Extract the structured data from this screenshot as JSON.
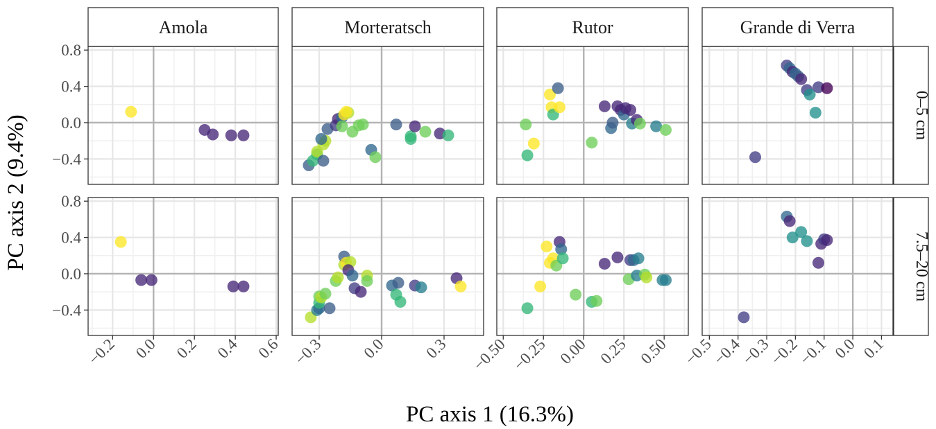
{
  "chart_data": {
    "type": "scatter",
    "xlabel": "PC axis 1 (16.3%)",
    "ylabel": "PC axis 2 (9.4%)",
    "columns": [
      "Amola",
      "Morteratsch",
      "Rutor",
      "Grande di Verra"
    ],
    "rows": [
      "0–5 cm",
      "7.5–20 cm"
    ],
    "y_ticks": [
      -0.4,
      0.0,
      0.4,
      0.8
    ],
    "y_tick_labels": [
      "−0.4",
      "0.0",
      "0.4",
      "0.8"
    ],
    "ylim": [
      -0.68,
      0.84
    ],
    "grid": true,
    "legend": "none",
    "palette": {
      "p": "#440154",
      "ip": "#3b1f6f",
      "dp": "#482878",
      "pu": "#433e85",
      "sb": "#3e5f8a",
      "b": "#31688e",
      "tb": "#277f8e",
      "tl": "#21918c",
      "g": "#35b779",
      "lg": "#6ece58",
      "yg": "#b5de2b",
      "y": "#fde725"
    },
    "panels": [
      {
        "column": "Amola",
        "xlim": [
          -0.32,
          0.61
        ],
        "x_ticks": [
          -0.2,
          0.0,
          0.2,
          0.4,
          0.6
        ],
        "x_tick_labels": [
          "−0.2",
          "0.0",
          "0.2",
          "0.4",
          "0.6"
        ],
        "rows": [
          [
            [
              -0.11,
              0.12,
              "y"
            ],
            [
              0.25,
              -0.08,
              "dp"
            ],
            [
              0.29,
              -0.13,
              "dp"
            ],
            [
              0.38,
              -0.14,
              "dp"
            ],
            [
              0.44,
              -0.14,
              "dp"
            ]
          ],
          [
            [
              -0.16,
              0.35,
              "y"
            ],
            [
              -0.06,
              -0.07,
              "dp"
            ],
            [
              -0.01,
              -0.07,
              "dp"
            ],
            [
              0.39,
              -0.14,
              "dp"
            ],
            [
              0.44,
              -0.14,
              "dp"
            ]
          ]
        ]
      },
      {
        "column": "Morteratsch",
        "xlim": [
          -0.43,
          0.49
        ],
        "x_ticks": [
          -0.3,
          0.0,
          0.3
        ],
        "x_tick_labels": [
          "−0.3",
          "0.0",
          "0.3"
        ],
        "rows": [
          [
            [
              -0.35,
              -0.47,
              "sb"
            ],
            [
              -0.33,
              -0.42,
              "g"
            ],
            [
              -0.31,
              -0.35,
              "g"
            ],
            [
              -0.31,
              -0.32,
              "yg"
            ],
            [
              -0.28,
              -0.42,
              "sb"
            ],
            [
              -0.28,
              -0.24,
              "yg"
            ],
            [
              -0.27,
              -0.2,
              "yg"
            ],
            [
              -0.29,
              -0.18,
              "b"
            ],
            [
              -0.26,
              -0.07,
              "sb"
            ],
            [
              -0.22,
              -0.03,
              "pu"
            ],
            [
              -0.21,
              0.04,
              "dp"
            ],
            [
              -0.19,
              0.06,
              "b"
            ],
            [
              -0.18,
              0.09,
              "y"
            ],
            [
              -0.16,
              0.11,
              "yg"
            ],
            [
              -0.17,
              0.12,
              "y"
            ],
            [
              -0.19,
              -0.04,
              "lg"
            ],
            [
              -0.14,
              -0.1,
              "lg"
            ],
            [
              -0.11,
              -0.03,
              "lg"
            ],
            [
              -0.09,
              -0.02,
              "lg"
            ],
            [
              -0.05,
              -0.3,
              "b"
            ],
            [
              -0.03,
              -0.38,
              "lg"
            ],
            [
              0.07,
              -0.02,
              "sb"
            ],
            [
              0.14,
              -0.15,
              "g"
            ],
            [
              0.14,
              -0.18,
              "g"
            ],
            [
              0.16,
              -0.04,
              "dp"
            ],
            [
              0.21,
              -0.1,
              "lg"
            ],
            [
              0.28,
              -0.12,
              "dp"
            ],
            [
              0.32,
              -0.14,
              "g"
            ]
          ],
          [
            [
              -0.34,
              -0.48,
              "yg"
            ],
            [
              -0.31,
              -0.4,
              "tb"
            ],
            [
              -0.3,
              -0.38,
              "b"
            ],
            [
              -0.3,
              -0.32,
              "g"
            ],
            [
              -0.3,
              -0.25,
              "lg"
            ],
            [
              -0.29,
              -0.26,
              "yg"
            ],
            [
              -0.27,
              -0.22,
              "lg"
            ],
            [
              -0.25,
              -0.38,
              "sb"
            ],
            [
              -0.22,
              -0.08,
              "lg"
            ],
            [
              -0.21,
              -0.04,
              "yg"
            ],
            [
              -0.18,
              0.1,
              "yg"
            ],
            [
              -0.18,
              0.19,
              "sb"
            ],
            [
              -0.17,
              0.12,
              "y"
            ],
            [
              -0.15,
              0.13,
              "yg"
            ],
            [
              -0.16,
              0.04,
              "dp"
            ],
            [
              -0.14,
              -0.02,
              "b"
            ],
            [
              -0.13,
              -0.16,
              "pu"
            ],
            [
              -0.1,
              -0.2,
              "dp"
            ],
            [
              -0.07,
              -0.02,
              "yg"
            ],
            [
              -0.07,
              -0.08,
              "lg"
            ],
            [
              0.05,
              -0.13,
              "b"
            ],
            [
              0.07,
              -0.23,
              "g"
            ],
            [
              0.08,
              -0.1,
              "sb"
            ],
            [
              0.09,
              -0.31,
              "g"
            ],
            [
              0.16,
              -0.13,
              "pu"
            ],
            [
              0.19,
              -0.15,
              "tb"
            ],
            [
              0.36,
              -0.05,
              "dp"
            ],
            [
              0.38,
              -0.14,
              "y"
            ]
          ]
        ]
      },
      {
        "column": "Rutor",
        "xlim": [
          -0.54,
          0.65
        ],
        "x_ticks": [
          -0.5,
          -0.25,
          0.0,
          0.25,
          0.5
        ],
        "x_tick_labels": [
          "−0.50",
          "−0.25",
          "0.00",
          "0.25",
          "0.50"
        ],
        "rows": [
          [
            [
              -0.36,
              -0.02,
              "lg"
            ],
            [
              -0.35,
              -0.36,
              "g"
            ],
            [
              -0.31,
              -0.23,
              "y"
            ],
            [
              -0.21,
              0.31,
              "y"
            ],
            [
              -0.2,
              0.17,
              "y"
            ],
            [
              -0.19,
              0.09,
              "g"
            ],
            [
              -0.16,
              0.38,
              "sb"
            ],
            [
              -0.15,
              0.17,
              "y"
            ],
            [
              0.05,
              -0.22,
              "lg"
            ],
            [
              0.13,
              0.18,
              "dp"
            ],
            [
              0.17,
              -0.06,
              "b"
            ],
            [
              0.18,
              0.0,
              "sb"
            ],
            [
              0.21,
              0.18,
              "dp"
            ],
            [
              0.23,
              0.14,
              "dp"
            ],
            [
              0.25,
              0.09,
              "b"
            ],
            [
              0.26,
              0.16,
              "dp"
            ],
            [
              0.29,
              0.14,
              "dp"
            ],
            [
              0.3,
              -0.01,
              "tb"
            ],
            [
              0.33,
              0.03,
              "dp"
            ],
            [
              0.35,
              -0.01,
              "lg"
            ],
            [
              0.45,
              -0.04,
              "tb"
            ],
            [
              0.51,
              -0.08,
              "lg"
            ]
          ],
          [
            [
              -0.35,
              -0.38,
              "g"
            ],
            [
              -0.27,
              -0.14,
              "y"
            ],
            [
              -0.23,
              0.3,
              "y"
            ],
            [
              -0.21,
              0.12,
              "y"
            ],
            [
              -0.19,
              0.17,
              "y"
            ],
            [
              -0.17,
              0.09,
              "lg"
            ],
            [
              -0.15,
              0.35,
              "dp"
            ],
            [
              -0.14,
              0.27,
              "b"
            ],
            [
              -0.13,
              0.17,
              "g"
            ],
            [
              -0.05,
              -0.23,
              "lg"
            ],
            [
              0.05,
              -0.31,
              "g"
            ],
            [
              0.08,
              -0.3,
              "lg"
            ],
            [
              0.13,
              0.11,
              "dp"
            ],
            [
              0.21,
              0.18,
              "dp"
            ],
            [
              0.28,
              -0.06,
              "lg"
            ],
            [
              0.29,
              0.15,
              "pu"
            ],
            [
              0.31,
              0.15,
              "b"
            ],
            [
              0.33,
              -0.02,
              "tb"
            ],
            [
              0.34,
              0.17,
              "tb"
            ],
            [
              0.38,
              -0.01,
              "lg"
            ],
            [
              0.39,
              -0.04,
              "yg"
            ],
            [
              0.49,
              -0.07,
              "tb"
            ],
            [
              0.51,
              -0.07,
              "tb"
            ]
          ]
        ]
      },
      {
        "column": "Grande di Verra",
        "xlim": [
          -0.525,
          0.14
        ],
        "x_ticks": [
          -0.5,
          -0.4,
          -0.3,
          -0.2,
          -0.1,
          0.0,
          0.1
        ],
        "x_tick_labels": [
          "−0.5",
          "−0.4",
          "−0.3",
          "−0.2",
          "−0.1",
          "0.0",
          "0.1"
        ],
        "rows": [
          [
            [
              -0.34,
              -0.38,
              "pu"
            ],
            [
              -0.23,
              0.63,
              "pu"
            ],
            [
              -0.22,
              0.6,
              "b"
            ],
            [
              -0.21,
              0.56,
              "dp"
            ],
            [
              -0.2,
              0.54,
              "b"
            ],
            [
              -0.19,
              0.51,
              "sb"
            ],
            [
              -0.18,
              0.48,
              "dp"
            ],
            [
              -0.16,
              0.36,
              "pu"
            ],
            [
              -0.15,
              0.31,
              "tl"
            ],
            [
              -0.13,
              0.11,
              "tl"
            ],
            [
              -0.12,
              0.39,
              "pu"
            ],
            [
              -0.09,
              0.38,
              "p"
            ]
          ],
          [
            [
              -0.38,
              -0.48,
              "pu"
            ],
            [
              -0.23,
              0.63,
              "b"
            ],
            [
              -0.22,
              0.58,
              "dp"
            ],
            [
              -0.21,
              0.4,
              "tl"
            ],
            [
              -0.18,
              0.46,
              "tl"
            ],
            [
              -0.16,
              0.36,
              "tl"
            ],
            [
              -0.12,
              0.12,
              "dp"
            ],
            [
              -0.11,
              0.33,
              "dp"
            ],
            [
              -0.1,
              0.38,
              "pu"
            ],
            [
              -0.09,
              0.37,
              "dp"
            ]
          ]
        ]
      }
    ]
  }
}
